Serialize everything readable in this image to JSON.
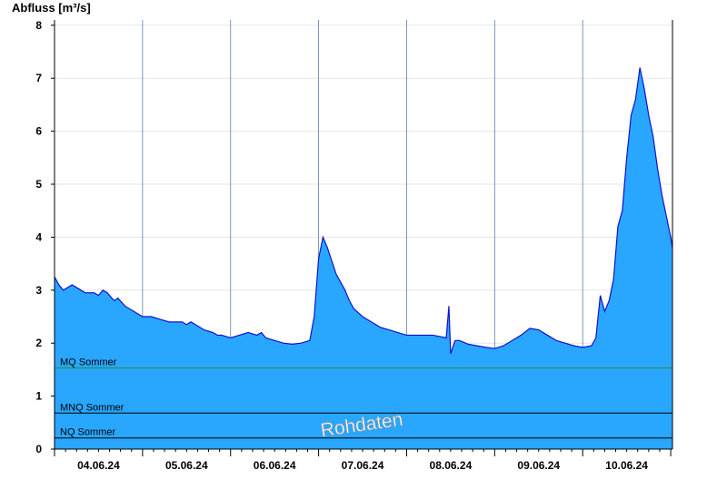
{
  "chart_data": {
    "type": "area",
    "ylabel": "Abfluss [m³/s]",
    "xlabel": "",
    "ylim": [
      0,
      8.1
    ],
    "yticks": [
      0,
      1,
      2,
      3,
      4,
      5,
      6,
      7,
      8
    ],
    "xlim": [
      0,
      7.02
    ],
    "day_ticks": [
      "04.06.24",
      "05.06.24",
      "06.06.24",
      "07.06.24",
      "08.06.24",
      "09.06.24",
      "10.06.24"
    ],
    "grid": true,
    "colors": {
      "fill": "#29a7ff",
      "line": "#1010d0",
      "mq": "#2a8a3a",
      "ref": "#000000"
    },
    "reference_lines": [
      {
        "label": "MQ Sommer",
        "value": 1.53
      },
      {
        "label": "MNQ Sommer",
        "value": 0.68
      },
      {
        "label": "NQ Sommer",
        "value": 0.21
      }
    ],
    "watermark": "Rohdaten",
    "series": [
      {
        "x": [
          0,
          0.05,
          0.1,
          0.2,
          0.3,
          0.35,
          0.45,
          0.5,
          0.55,
          0.6,
          0.65,
          0.68,
          0.72,
          0.8,
          0.9,
          1.0,
          1.1,
          1.2,
          1.3,
          1.4,
          1.45,
          1.5,
          1.55,
          1.6,
          1.7,
          1.8,
          1.85,
          1.9,
          2.0,
          2.1,
          2.2,
          2.3,
          2.35,
          2.4,
          2.5,
          2.6,
          2.7,
          2.8,
          2.9,
          2.95,
          3.0,
          3.05,
          3.1,
          3.2,
          3.3,
          3.35,
          3.4,
          3.5,
          3.6,
          3.7,
          3.8,
          3.9,
          4.0,
          4.1,
          4.3,
          4.45,
          4.48,
          4.5,
          4.55,
          4.6,
          4.7,
          4.8,
          4.9,
          5.0,
          5.1,
          5.2,
          5.3,
          5.4,
          5.5,
          5.6,
          5.7,
          5.8,
          5.9,
          6.0,
          6.1,
          6.15,
          6.2,
          6.25,
          6.3,
          6.35,
          6.4,
          6.45,
          6.5,
          6.55,
          6.6,
          6.65,
          6.7,
          6.75,
          6.8,
          6.85,
          6.9,
          6.95,
          7.0,
          7.02
        ],
        "y": [
          3.25,
          3.1,
          3.0,
          3.1,
          3.0,
          2.95,
          2.95,
          2.9,
          3.0,
          2.95,
          2.85,
          2.8,
          2.85,
          2.7,
          2.6,
          2.5,
          2.5,
          2.45,
          2.4,
          2.4,
          2.4,
          2.35,
          2.4,
          2.35,
          2.25,
          2.2,
          2.15,
          2.15,
          2.1,
          2.15,
          2.2,
          2.15,
          2.2,
          2.1,
          2.05,
          2.0,
          1.98,
          2.0,
          2.05,
          2.5,
          3.6,
          4.0,
          3.8,
          3.3,
          3.0,
          2.8,
          2.65,
          2.5,
          2.4,
          2.3,
          2.25,
          2.2,
          2.15,
          2.15,
          2.15,
          2.1,
          2.7,
          1.8,
          2.05,
          2.05,
          1.98,
          1.95,
          1.92,
          1.9,
          1.95,
          2.05,
          2.15,
          2.28,
          2.25,
          2.15,
          2.05,
          2.0,
          1.95,
          1.92,
          1.95,
          2.1,
          2.9,
          2.6,
          2.8,
          3.2,
          4.2,
          4.5,
          5.5,
          6.3,
          6.6,
          7.2,
          6.8,
          6.3,
          5.9,
          5.3,
          4.8,
          4.4,
          4.0,
          3.8
        ]
      }
    ]
  }
}
